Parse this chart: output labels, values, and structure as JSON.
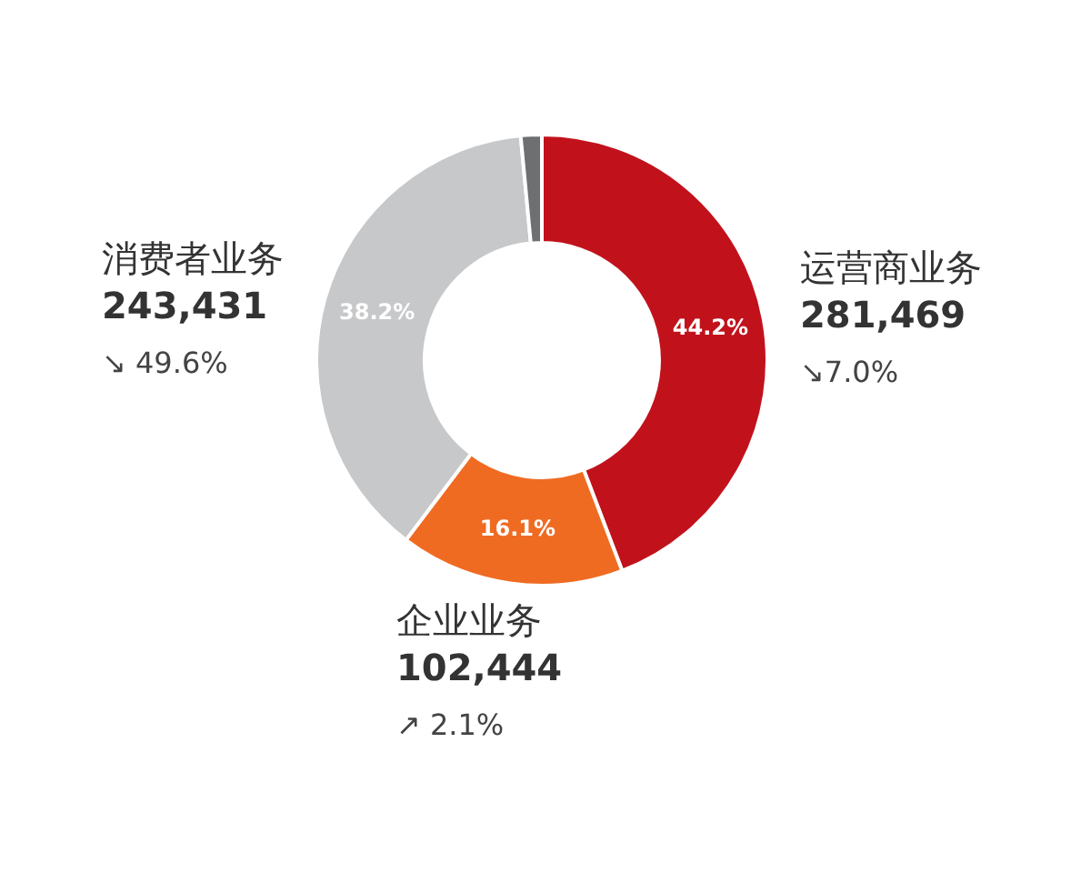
{
  "chart_data": {
    "type": "donut",
    "categories": [
      "运营商业务",
      "企业业务",
      "消费者业务",
      null
    ],
    "values": [
      44.2,
      16.1,
      38.2,
      1.5
    ],
    "colors": [
      "#c1121c",
      "#f06b22",
      "#c7c8ca",
      "#6e6f71"
    ],
    "value_labels": [
      "44.2%",
      "16.1%",
      "38.2%",
      null
    ],
    "annotations": [
      "281,469",
      "↘7.0%",
      "102,444",
      "↗ 2.1%",
      "243,431",
      "↘ 49.6%"
    ],
    "legend": false
  }
}
